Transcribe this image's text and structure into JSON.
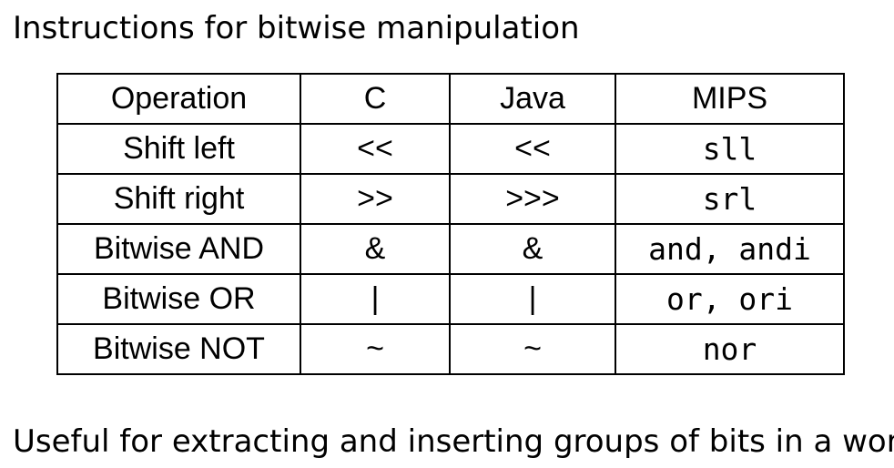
{
  "title": "Instructions for bitwise manipulation",
  "table": {
    "headers": [
      "Operation",
      "C",
      "Java",
      "MIPS"
    ],
    "rows": [
      [
        "Shift left",
        "<<",
        "<<",
        "sll"
      ],
      [
        "Shift right",
        ">>",
        ">>>",
        "srl"
      ],
      [
        "Bitwise AND",
        "&",
        "&",
        "and, andi"
      ],
      [
        "Bitwise OR",
        "|",
        "|",
        "or, ori"
      ],
      [
        "Bitwise NOT",
        "~",
        "~",
        "nor"
      ]
    ]
  },
  "note": "Useful for extracting and inserting groups of bits in a word"
}
